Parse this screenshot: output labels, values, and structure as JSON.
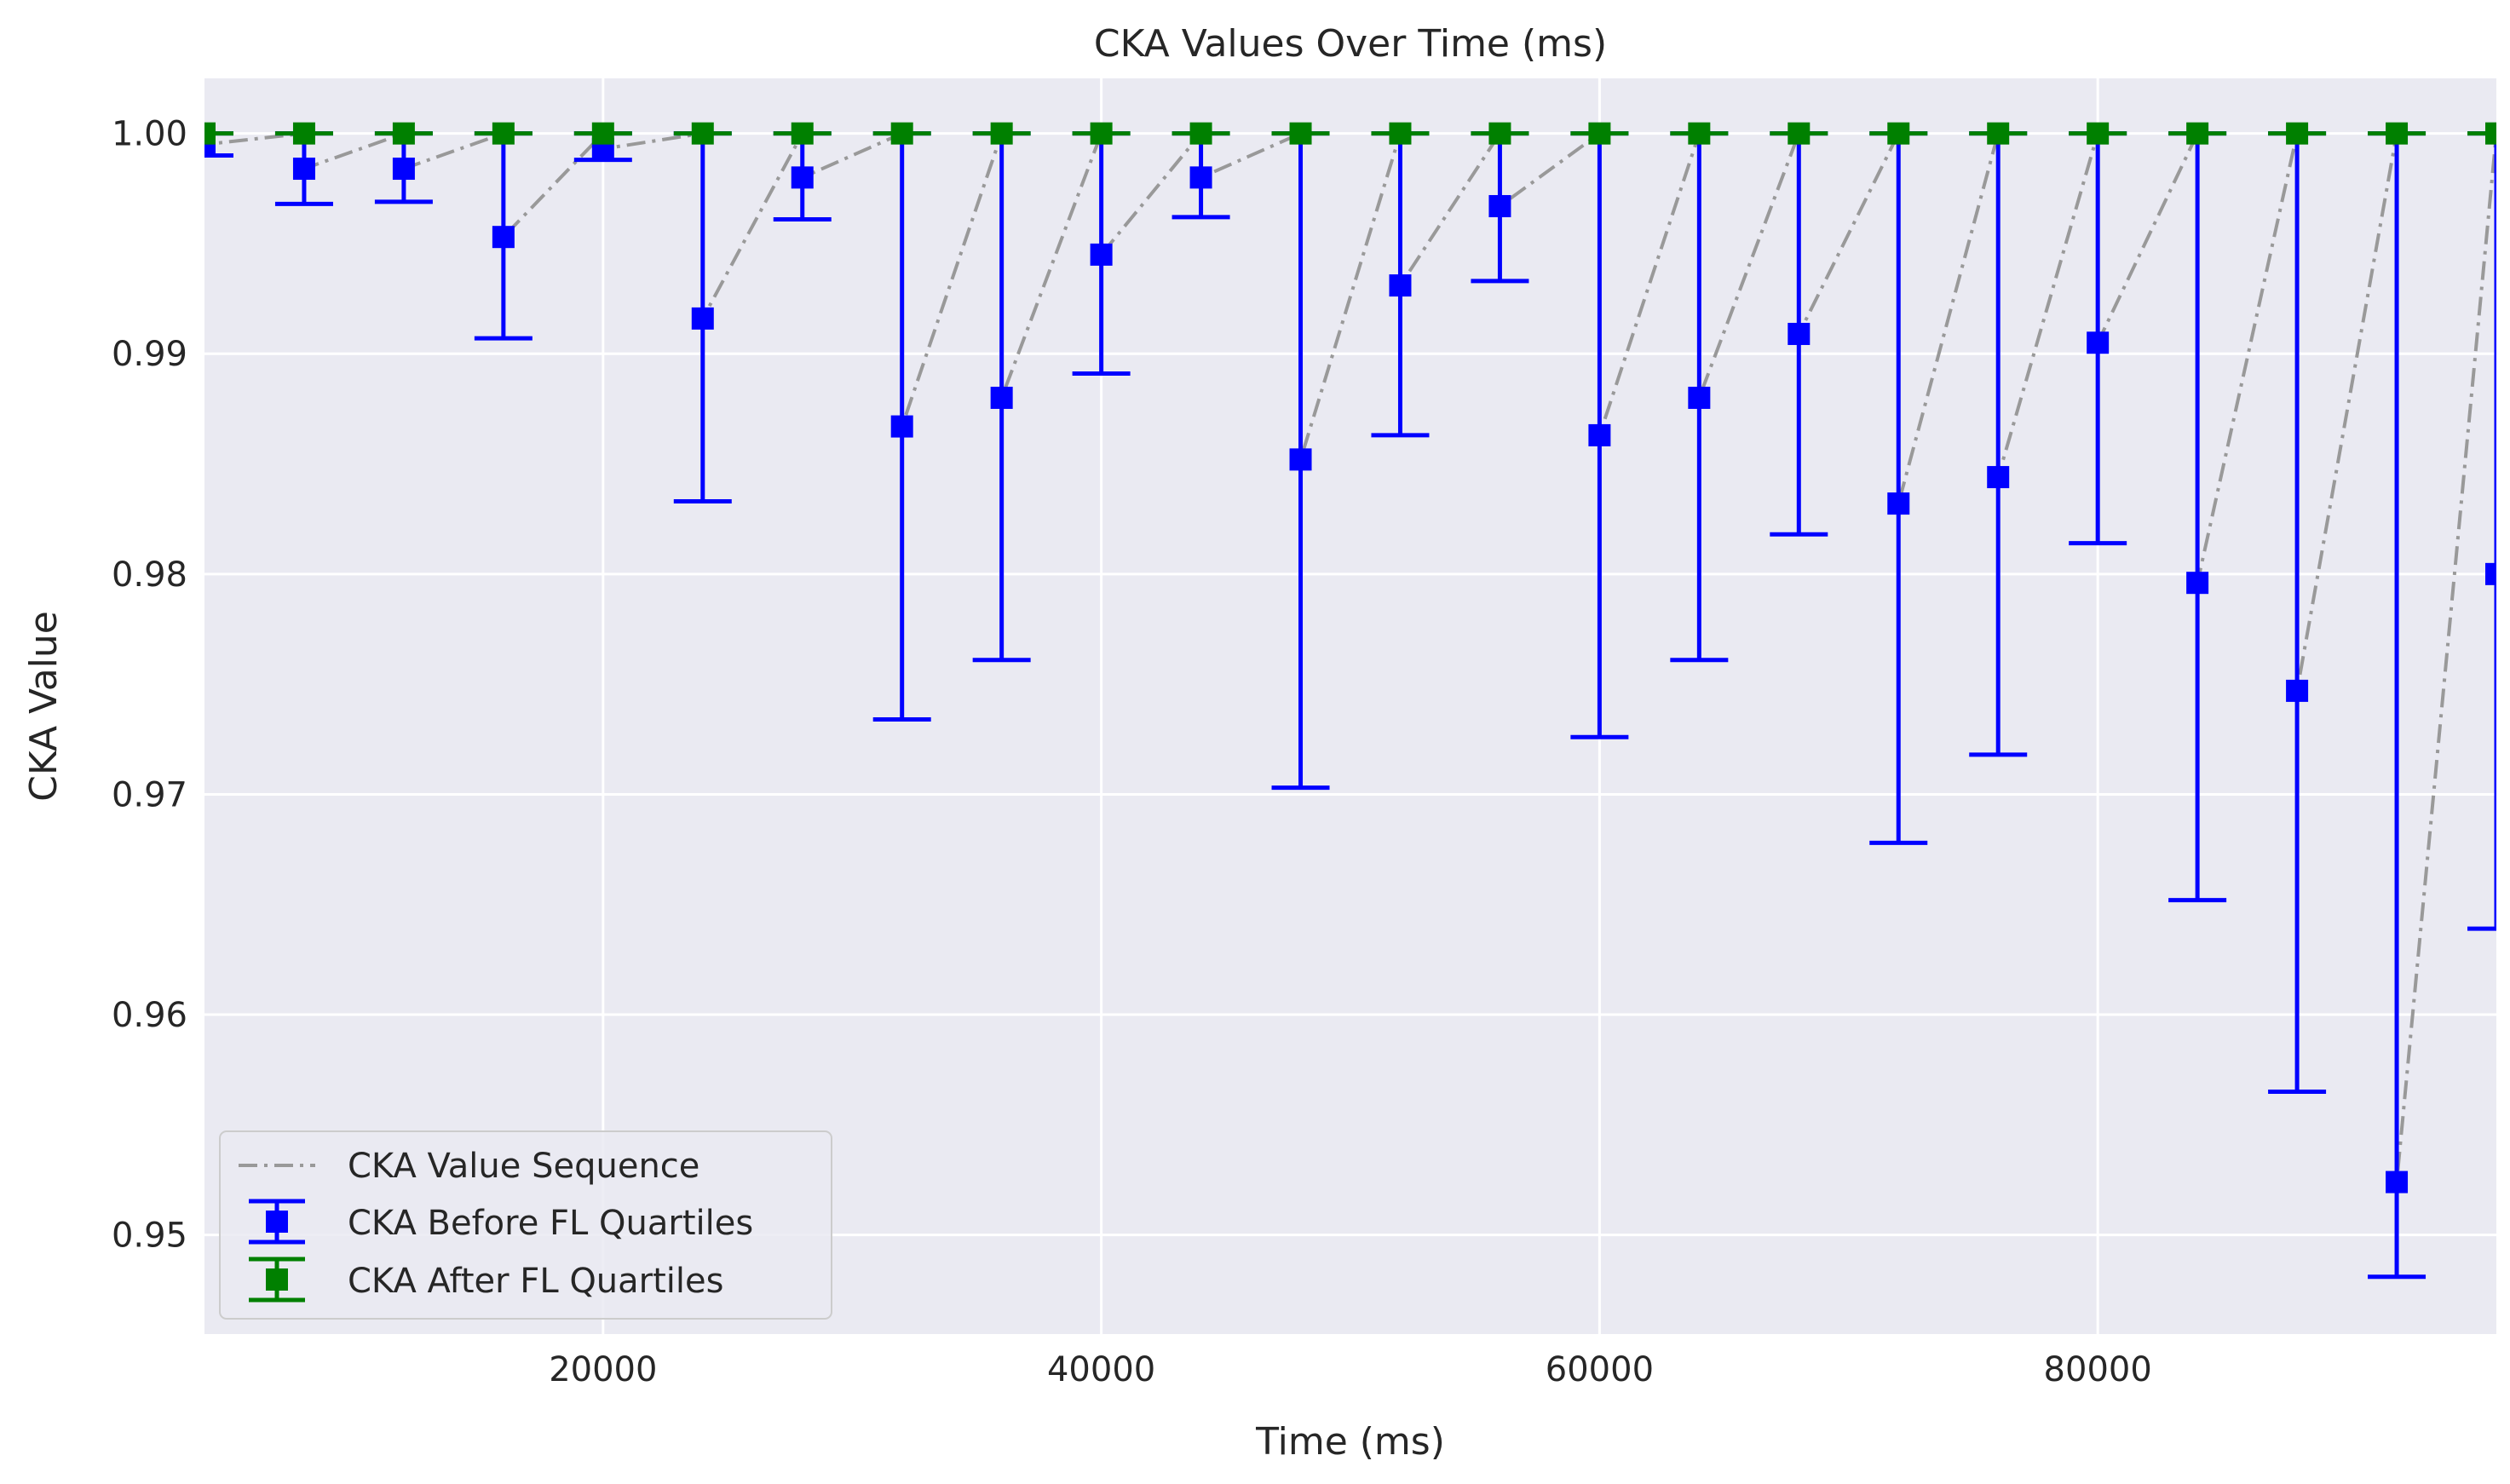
{
  "chart_data": {
    "type": "line",
    "title": "CKA Values Over Time (ms)",
    "xlabel": "Time (ms)",
    "ylabel": "CKA Value",
    "xlim": [
      4000,
      96000
    ],
    "ylim": [
      0.9455,
      1.0025
    ],
    "xticks": [
      20000,
      40000,
      60000,
      80000
    ],
    "yticks": [
      0.95,
      0.96,
      0.97,
      0.98,
      0.99,
      1.0
    ],
    "ytick_labels": [
      "0.95",
      "0.96",
      "0.97",
      "0.98",
      "0.99",
      "1.00"
    ],
    "grid": true,
    "legend_position": "lower-left",
    "background": "#eaeaf2",
    "legend": [
      {
        "label": "CKA Value Sequence",
        "color": "#999999",
        "marker": "dashdot-line"
      },
      {
        "label": "CKA Before FL Quartiles",
        "color": "#0000ff",
        "marker": "square-errorbar"
      },
      {
        "label": "CKA After FL Quartiles",
        "color": "#008000",
        "marker": "square-errorbar"
      }
    ],
    "before": {
      "x": [
        4000,
        8000,
        12000,
        16000,
        20000,
        24000,
        28000,
        32000,
        36000,
        40000,
        44000,
        48000,
        52000,
        56000,
        60000,
        64000,
        68000,
        72000,
        76000,
        80000,
        84000,
        88000,
        92000,
        96000
      ],
      "value": [
        0.9995,
        0.9984,
        0.9984,
        0.9953,
        0.9993,
        0.9916,
        0.998,
        0.9867,
        0.988,
        0.9945,
        0.998,
        0.9852,
        0.9931,
        0.9967,
        0.9863,
        0.988,
        0.9909,
        0.9832,
        0.9844,
        0.9905,
        0.9796,
        0.9747,
        0.9524,
        0.98
      ],
      "lower": [
        0.999,
        0.9968,
        0.9969,
        0.9907,
        0.9988,
        0.9833,
        0.9961,
        0.9734,
        0.9761,
        0.9891,
        0.9962,
        0.9703,
        0.9863,
        0.9933,
        0.9726,
        0.9761,
        0.9818,
        0.9678,
        0.9718,
        0.9814,
        0.9652,
        0.9565,
        0.9481,
        0.9639
      ],
      "upper": [
        1.0,
        1.0,
        1.0,
        1.0,
        1.0,
        1.0,
        1.0,
        1.0,
        1.0,
        1.0,
        1.0,
        1.0,
        1.0,
        1.0,
        1.0,
        1.0,
        1.0,
        1.0,
        1.0,
        1.0,
        1.0,
        1.0,
        1.0,
        1.0
      ]
    },
    "after": {
      "x": [
        4000,
        8000,
        12000,
        16000,
        20000,
        24000,
        28000,
        32000,
        36000,
        40000,
        44000,
        48000,
        52000,
        56000,
        60000,
        64000,
        68000,
        72000,
        76000,
        80000,
        84000,
        88000,
        92000,
        96000
      ],
      "value": [
        1.0,
        1.0,
        1.0,
        1.0,
        1.0,
        1.0,
        1.0,
        1.0,
        1.0,
        1.0,
        1.0,
        1.0,
        1.0,
        1.0,
        1.0,
        1.0,
        1.0,
        1.0,
        1.0,
        1.0,
        1.0,
        1.0,
        1.0,
        1.0
      ]
    }
  }
}
